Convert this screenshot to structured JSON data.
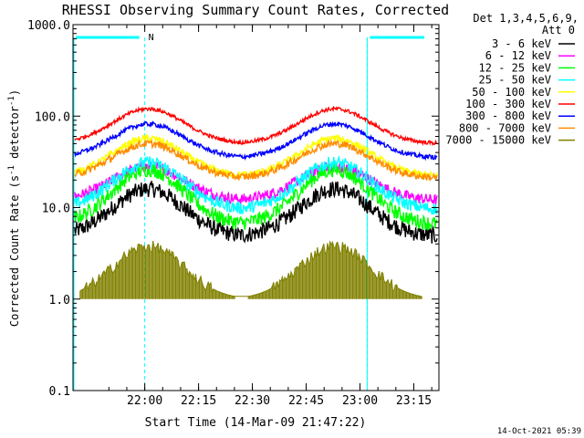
{
  "chart_data": {
    "type": "line",
    "title": "RHESSI Observing Summary Count Rates, Corrected",
    "xlabel": "Start Time (14-Mar-09 21:47:22)",
    "ylabel_main": "Corrected Count Rate (s",
    "ylabel_sup1": "-1",
    "ylabel_mid": " detector",
    "ylabel_sup2": "-1",
    "ylabel_end": ")",
    "yscale": "log",
    "ylim": [
      0.1,
      1000.0
    ],
    "xlim_minutes": [
      -7,
      95
    ],
    "x_tick_labels": [
      "22:00",
      "22:15",
      "22:30",
      "22:45",
      "23:00",
      "23:15"
    ],
    "x_tick_minutes": [
      13,
      28,
      43,
      58,
      73,
      88
    ],
    "y_tick_labels": [
      "0.1",
      "1.0",
      "10.0",
      "100.0",
      "1000.0"
    ],
    "y_tick_values": [
      0.1,
      1.0,
      10.0,
      100.0,
      1000.0
    ],
    "legend_header_1": "Det 1,3,4,5,6,9,",
    "legend_header_2": "Att 0",
    "series": [
      {
        "name": "3 - 6 keV",
        "color": "#000000",
        "base": 4.8,
        "peak": 16.0,
        "noise": 0.09
      },
      {
        "name": "6 - 12 keV",
        "color": "#ff00ff",
        "base": 12.0,
        "peak": 28.0,
        "noise": 0.06
      },
      {
        "name": "12 - 25 keV",
        "color": "#00ff00",
        "base": 6.5,
        "peak": 26.0,
        "noise": 0.08
      },
      {
        "name": "25 - 50 keV",
        "color": "#00ffff",
        "base": 9.5,
        "peak": 31.0,
        "noise": 0.07
      },
      {
        "name": "50 - 100 keV",
        "color": "#ffff00",
        "base": 22.0,
        "peak": 57.0,
        "noise": 0.04
      },
      {
        "name": "100 - 300 keV",
        "color": "#ff0000",
        "base": 50.0,
        "peak": 120.0,
        "noise": 0.02
      },
      {
        "name": "300 - 800 keV",
        "color": "#0000ff",
        "base": 35.0,
        "peak": 82.0,
        "noise": 0.025
      },
      {
        "name": "800 - 7000 keV",
        "color": "#ff8c00",
        "base": 21.0,
        "peak": 50.0,
        "noise": 0.04
      },
      {
        "name": "7000 - 15000 keV",
        "color": "#808000",
        "base": 1.0,
        "peak": 3.8,
        "noise": 0.0
      }
    ],
    "peak_times_minutes": [
      14,
      66
    ],
    "saa_flag_label": "N",
    "saa_flag_color": "#00ffff",
    "saa_intervals_minutes": [
      [
        -7,
        13
      ],
      [
        75,
        95
      ]
    ],
    "night_boundaries_minutes": [
      13,
      75,
      95
    ],
    "footer_date": "14-Oct-2021 05:39"
  }
}
